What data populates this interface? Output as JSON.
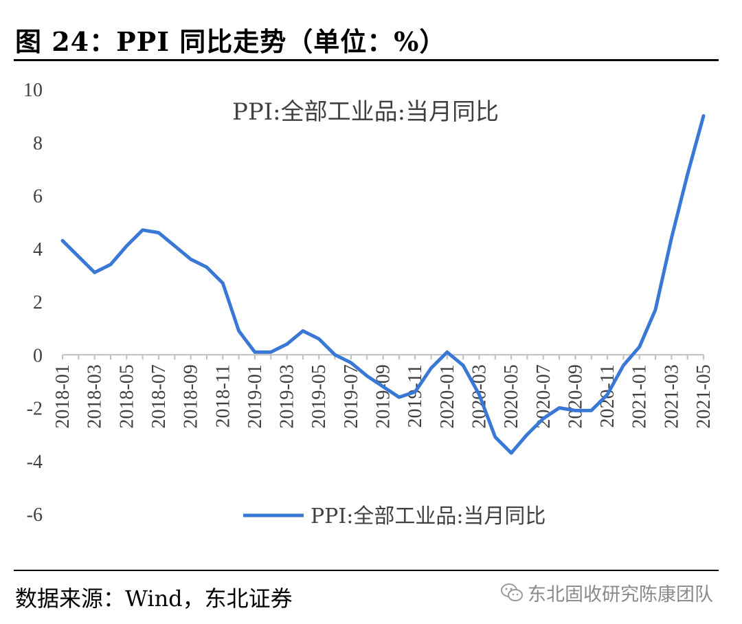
{
  "figure": {
    "title": "图 24：PPI 同比走势（单位：%）",
    "source": "数据来源：Wind，东北证券",
    "watermark_text": "东北固收研究陈康团队",
    "watermark_icon": "wechat-icon"
  },
  "colors": {
    "line": "#3a78d6",
    "axis": "#bfbfbf",
    "text": "#404040"
  },
  "chart_data": {
    "type": "line",
    "title": "PPI:全部工业品:当月同比",
    "ylim": [
      -6,
      10
    ],
    "yticks": [
      10,
      8,
      6,
      4,
      2,
      0,
      -2,
      -4,
      -6
    ],
    "xtick_labels": [
      "2018-01",
      "2018-03",
      "2018-05",
      "2018-07",
      "2018-09",
      "2018-11",
      "2019-01",
      "2019-03",
      "2019-05",
      "2019-07",
      "2019-09",
      "2019-11",
      "2020-01",
      "2020-03",
      "2020-05",
      "2020-07",
      "2020-09",
      "2020-11",
      "2021-01",
      "2021-03",
      "2021-05"
    ],
    "grid": false,
    "legend_position": "bottom-center",
    "series": [
      {
        "name": "PPI:全部工业品:当月同比",
        "x": [
          "2018-01",
          "2018-02",
          "2018-03",
          "2018-04",
          "2018-05",
          "2018-06",
          "2018-07",
          "2018-08",
          "2018-09",
          "2018-10",
          "2018-11",
          "2018-12",
          "2019-01",
          "2019-02",
          "2019-03",
          "2019-04",
          "2019-05",
          "2019-06",
          "2019-07",
          "2019-08",
          "2019-09",
          "2019-10",
          "2019-11",
          "2019-12",
          "2020-01",
          "2020-02",
          "2020-03",
          "2020-04",
          "2020-05",
          "2020-06",
          "2020-07",
          "2020-08",
          "2020-09",
          "2020-10",
          "2020-11",
          "2020-12",
          "2021-01",
          "2021-02",
          "2021-03",
          "2021-04",
          "2021-05"
        ],
        "values": [
          4.3,
          3.7,
          3.1,
          3.4,
          4.1,
          4.7,
          4.6,
          4.1,
          3.6,
          3.3,
          2.7,
          0.9,
          0.1,
          0.1,
          0.4,
          0.9,
          0.6,
          0.0,
          -0.3,
          -0.8,
          -1.2,
          -1.6,
          -1.4,
          -0.5,
          0.1,
          -0.4,
          -1.5,
          -3.1,
          -3.7,
          -3.0,
          -2.4,
          -2.0,
          -2.1,
          -2.1,
          -1.5,
          -0.4,
          0.3,
          1.7,
          4.4,
          6.8,
          9.0
        ]
      }
    ]
  }
}
